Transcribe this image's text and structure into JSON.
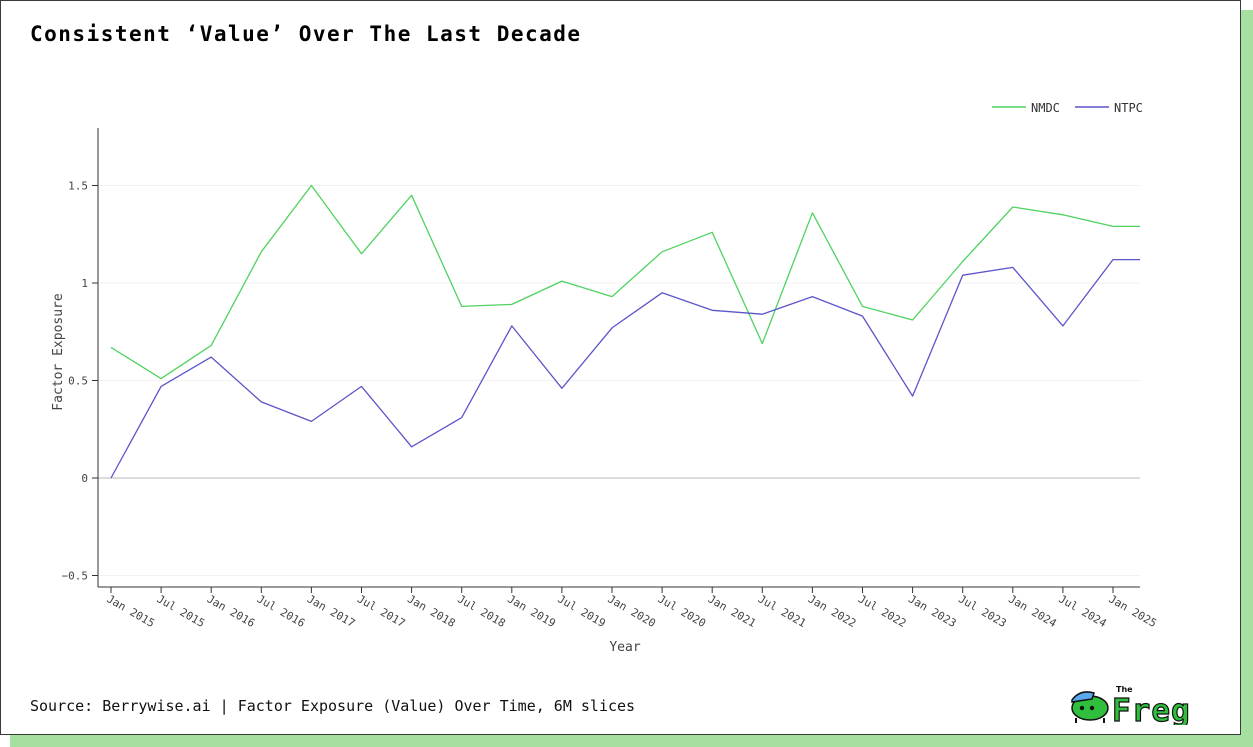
{
  "title": "Consistent ‘Value’ Over The Last Decade",
  "source": "Source: Berrywise.ai | Factor Exposure (Value) Over Time, 6M slices",
  "logo": {
    "small_text": "The",
    "big_text": "Freg"
  },
  "colors": {
    "nmdc": "#4fd25f",
    "ntpc": "#5b55cc",
    "shadow": "#a6e0a0",
    "logo_green": "#2fbf3c",
    "logo_blue": "#5aa8f0"
  },
  "chart_data": {
    "type": "line",
    "xlabel": "Year",
    "ylabel": "Factor Exposure",
    "ylim": [
      -0.55,
      1.8
    ],
    "yticks": [
      -0.5,
      0,
      0.5,
      1,
      1.5
    ],
    "ytick_labels": [
      "−0.5",
      "0",
      "0.5",
      "1",
      "1.5"
    ],
    "grid": true,
    "legend_position": "top-right",
    "categories": [
      "Jan 2015",
      "Jul 2015",
      "Jan 2016",
      "Jul 2016",
      "Jan 2017",
      "Jul 2017",
      "Jan 2018",
      "Jul 2018",
      "Jan 2019",
      "Jul 2019",
      "Jan 2020",
      "Jul 2020",
      "Jan 2021",
      "Jul 2021",
      "Jan 2022",
      "Jul 2022",
      "Jan 2023",
      "Jul 2023",
      "Jan 2024",
      "Jul 2024",
      "Jan 2025"
    ],
    "series": [
      {
        "name": "NMDC",
        "color": "#4fd25f",
        "values": [
          0.67,
          0.51,
          0.68,
          1.16,
          1.5,
          1.15,
          1.45,
          0.88,
          0.89,
          1.01,
          0.93,
          1.16,
          1.26,
          0.69,
          1.36,
          0.88,
          0.81,
          1.11,
          1.39,
          1.35,
          1.29
        ],
        "last_extension": 1.29
      },
      {
        "name": "NTPC",
        "color": "#5b55cc",
        "values": [
          0.0,
          0.47,
          0.62,
          0.39,
          0.29,
          0.47,
          0.16,
          0.31,
          0.78,
          0.46,
          0.77,
          0.95,
          0.86,
          0.84,
          0.93,
          0.83,
          0.42,
          1.04,
          1.08,
          0.78,
          1.12
        ],
        "last_extension": 1.12
      }
    ]
  }
}
